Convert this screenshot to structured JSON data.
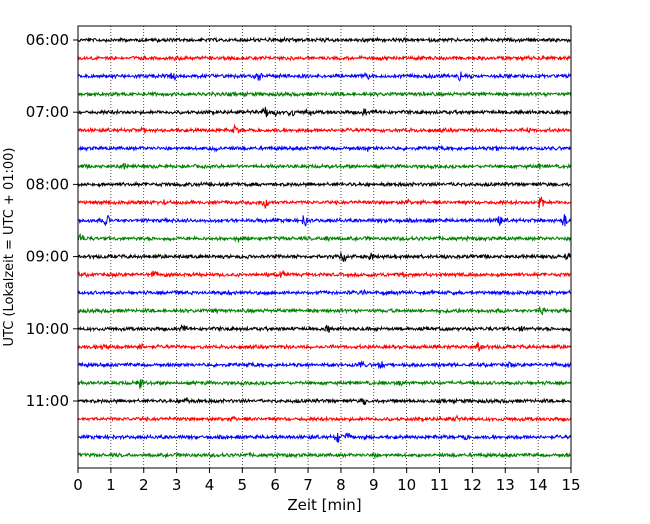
{
  "chart_data": {
    "type": "line",
    "subtype": "helicorder",
    "title": "",
    "xlabel": "Zeit  [min]",
    "ylabel": "UTC (Lokalzeit = UTC + 01:00)",
    "xlim": [
      0,
      15
    ],
    "x_ticks": [
      "0",
      "1",
      "2",
      "3",
      "4",
      "5",
      "6",
      "7",
      "8",
      "9",
      "10",
      "11",
      "12",
      "13",
      "14",
      "15"
    ],
    "y_tick_labels": [
      "06:00",
      "07:00",
      "08:00",
      "09:00",
      "10:00",
      "11:00"
    ],
    "grid": "vertical dotted lines at each minute",
    "legend": "none",
    "trace_colors": [
      "#000000",
      "#ff0000",
      "#0000ff",
      "#008000"
    ],
    "traces": [
      {
        "row": 0,
        "color": "black",
        "events": [
          [
            6.2,
            0.3
          ]
        ]
      },
      {
        "row": 1,
        "color": "red",
        "events": [
          [
            3.0,
            0.4
          ],
          [
            9.2,
            0.3
          ]
        ]
      },
      {
        "row": 2,
        "color": "blue",
        "events": [
          [
            2.9,
            0.9
          ],
          [
            5.5,
            0.8
          ],
          [
            11.6,
            0.8
          ],
          [
            8.8,
            0.3
          ]
        ]
      },
      {
        "row": 3,
        "color": "green",
        "events": [
          [
            10.5,
            0.3
          ]
        ]
      },
      {
        "row": 4,
        "color": "black",
        "events": [
          [
            5.7,
            0.9
          ],
          [
            6.5,
            0.9
          ],
          [
            7.0,
            0.8
          ],
          [
            6.0,
            0.7
          ],
          [
            8.7,
            0.4
          ]
        ]
      },
      {
        "row": 5,
        "color": "red",
        "events": [
          [
            4.8,
            0.8
          ],
          [
            2.0,
            0.4
          ],
          [
            13.7,
            0.4
          ]
        ]
      },
      {
        "row": 6,
        "color": "blue",
        "events": [
          [
            4.2,
            0.5
          ],
          [
            8.8,
            0.4
          ],
          [
            12.7,
            0.4
          ]
        ]
      },
      {
        "row": 7,
        "color": "green",
        "events": [
          [
            1.4,
            0.4
          ],
          [
            9.0,
            0.4
          ],
          [
            14.0,
            0.3
          ]
        ]
      },
      {
        "row": 8,
        "color": "black",
        "events": [
          [
            4.0,
            0.3
          ],
          [
            11.5,
            0.3
          ]
        ]
      },
      {
        "row": 9,
        "color": "red",
        "events": [
          [
            2.6,
            0.6
          ],
          [
            5.7,
            0.9
          ],
          [
            10.0,
            0.6
          ],
          [
            14.1,
            1.3
          ]
        ]
      },
      {
        "row": 10,
        "color": "blue",
        "events": [
          [
            0.9,
            1.5
          ],
          [
            6.9,
            0.9
          ],
          [
            9.5,
            0.7
          ],
          [
            10.6,
            0.6
          ],
          [
            12.8,
            0.8
          ],
          [
            14.8,
            1.3
          ]
        ]
      },
      {
        "row": 11,
        "color": "green",
        "events": [
          [
            0.1,
            1.1
          ],
          [
            4.9,
            0.5
          ],
          [
            7.6,
            0.5
          ]
        ]
      },
      {
        "row": 12,
        "color": "black",
        "events": [
          [
            8.1,
            1.2
          ],
          [
            8.9,
            0.5
          ],
          [
            14.9,
            0.5
          ]
        ]
      },
      {
        "row": 13,
        "color": "red",
        "events": [
          [
            2.3,
            0.5
          ],
          [
            6.2,
            0.4
          ],
          [
            9.9,
            0.3
          ]
        ]
      },
      {
        "row": 14,
        "color": "blue",
        "events": [
          [
            4.6,
            0.3
          ],
          [
            8.7,
            0.3
          ]
        ]
      },
      {
        "row": 15,
        "color": "green",
        "events": [
          [
            14.1,
            0.7
          ],
          [
            4.2,
            0.3
          ]
        ]
      },
      {
        "row": 16,
        "color": "black",
        "events": [
          [
            7.6,
            0.6
          ],
          [
            3.2,
            0.5
          ],
          [
            13.5,
            0.5
          ]
        ]
      },
      {
        "row": 17,
        "color": "red",
        "events": [
          [
            0.8,
            0.6
          ],
          [
            12.2,
            0.8
          ],
          [
            1.9,
            0.4
          ]
        ]
      },
      {
        "row": 18,
        "color": "blue",
        "events": [
          [
            9.2,
            0.6
          ],
          [
            8.6,
            0.5
          ],
          [
            13.1,
            0.4
          ]
        ]
      },
      {
        "row": 19,
        "color": "green",
        "events": [
          [
            1.9,
            1.1
          ],
          [
            9.8,
            0.3
          ]
        ]
      },
      {
        "row": 20,
        "color": "black",
        "events": [
          [
            3.3,
            0.6
          ],
          [
            8.7,
            0.6
          ]
        ]
      },
      {
        "row": 21,
        "color": "red",
        "events": [
          [
            4.7,
            0.3
          ],
          [
            11.5,
            0.3
          ]
        ]
      },
      {
        "row": 22,
        "color": "blue",
        "events": [
          [
            7.9,
            1.2
          ],
          [
            8.2,
            0.8
          ],
          [
            8.8,
            0.6
          ],
          [
            11.8,
            0.4
          ]
        ]
      },
      {
        "row": 23,
        "color": "green",
        "events": [
          [
            3.3,
            0.3
          ],
          [
            9.0,
            0.3
          ]
        ]
      }
    ]
  }
}
